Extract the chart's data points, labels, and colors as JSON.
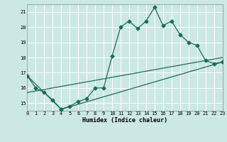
{
  "xlabel": "Humidex (Indice chaleur)",
  "xlim": [
    0,
    23
  ],
  "ylim": [
    14.5,
    21.5
  ],
  "yticks": [
    15,
    16,
    17,
    18,
    19,
    20,
    21
  ],
  "xticks": [
    0,
    1,
    2,
    3,
    4,
    5,
    6,
    7,
    8,
    9,
    10,
    11,
    12,
    13,
    14,
    15,
    16,
    17,
    18,
    19,
    20,
    21,
    22,
    23
  ],
  "bg_color": "#cce8e4",
  "grid_color": "#ffffff",
  "line_color": "#1a6b5a",
  "line1_x": [
    0,
    1,
    2,
    3,
    4,
    5,
    6,
    7,
    8,
    9,
    10,
    11,
    12,
    13,
    14,
    15,
    16,
    17,
    18,
    19,
    20,
    21,
    22,
    23
  ],
  "line1_y": [
    16.8,
    16.0,
    15.7,
    15.2,
    14.6,
    14.8,
    15.1,
    15.3,
    16.0,
    16.0,
    18.1,
    20.0,
    20.4,
    19.9,
    20.4,
    21.3,
    20.1,
    20.4,
    19.5,
    19.0,
    18.8,
    17.8,
    17.6,
    17.7
  ],
  "line2_x": [
    0,
    4,
    23
  ],
  "line2_y": [
    16.8,
    14.6,
    17.7
  ],
  "line3_x": [
    0,
    23
  ],
  "line3_y": [
    15.7,
    18.0
  ],
  "marker_size": 2.5,
  "linewidth": 0.9
}
